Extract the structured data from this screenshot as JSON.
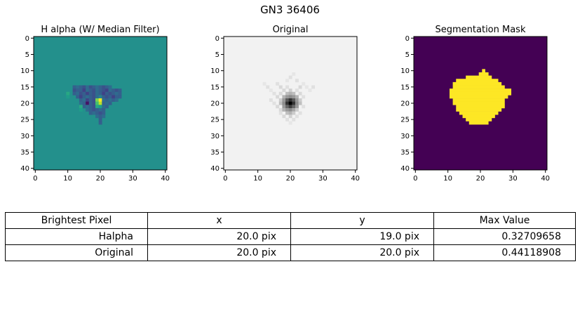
{
  "figure": {
    "suptitle": "GN3 36406"
  },
  "chart_data": [
    {
      "type": "heatmap",
      "title": "H alpha (W/ Median Filter)",
      "colormap": "viridis",
      "xlim": [
        0,
        40
      ],
      "ylim": [
        40,
        0
      ],
      "x_ticks": [
        "0",
        "10",
        "20",
        "30",
        "40"
      ],
      "y_ticks": [
        "0",
        "5",
        "10",
        "15",
        "20",
        "25",
        "30",
        "35",
        "40"
      ],
      "size": 41,
      "background": 0.5,
      "cells": [
        [
          15,
          12,
          0.3
        ],
        [
          15,
          13,
          0.35
        ],
        [
          15,
          14,
          0.3
        ],
        [
          15,
          15,
          0.25
        ],
        [
          15,
          16,
          0.35
        ],
        [
          15,
          17,
          0.25
        ],
        [
          15,
          18,
          0.3
        ],
        [
          15,
          19,
          0.35
        ],
        [
          15,
          20,
          0.3
        ],
        [
          15,
          21,
          0.25
        ],
        [
          15,
          22,
          0.3
        ],
        [
          15,
          23,
          0.35
        ],
        [
          16,
          12,
          0.25
        ],
        [
          16,
          13,
          0.3
        ],
        [
          16,
          14,
          0.3
        ],
        [
          16,
          15,
          0.2
        ],
        [
          16,
          16,
          0.35
        ],
        [
          16,
          17,
          0.3
        ],
        [
          16,
          18,
          0.25
        ],
        [
          16,
          19,
          0.35
        ],
        [
          16,
          20,
          0.3
        ],
        [
          16,
          21,
          0.25
        ],
        [
          16,
          22,
          0.2
        ],
        [
          16,
          23,
          0.35
        ],
        [
          16,
          24,
          0.3
        ],
        [
          16,
          25,
          0.25
        ],
        [
          16,
          26,
          0.3
        ],
        [
          17,
          12,
          0.3
        ],
        [
          17,
          13,
          0.35
        ],
        [
          17,
          14,
          0.25
        ],
        [
          17,
          15,
          0.3
        ],
        [
          17,
          16,
          0.2
        ],
        [
          17,
          17,
          0.3
        ],
        [
          17,
          18,
          0.25
        ],
        [
          17,
          19,
          0.35
        ],
        [
          17,
          20,
          0.3
        ],
        [
          17,
          21,
          0.2
        ],
        [
          17,
          22,
          0.3
        ],
        [
          17,
          23,
          0.25
        ],
        [
          17,
          24,
          0.3
        ],
        [
          17,
          25,
          0.35
        ],
        [
          17,
          26,
          0.3
        ],
        [
          18,
          13,
          0.3
        ],
        [
          18,
          14,
          0.2
        ],
        [
          18,
          15,
          0.3
        ],
        [
          18,
          16,
          0.35
        ],
        [
          18,
          17,
          0.3
        ],
        [
          18,
          18,
          0.25
        ],
        [
          18,
          19,
          0.35
        ],
        [
          18,
          20,
          0.45
        ],
        [
          18,
          21,
          0.3
        ],
        [
          18,
          22,
          0.25
        ],
        [
          18,
          23,
          0.3
        ],
        [
          18,
          24,
          0.2
        ],
        [
          18,
          25,
          0.3
        ],
        [
          18,
          26,
          0.3
        ],
        [
          19,
          14,
          0.3
        ],
        [
          19,
          15,
          0.35
        ],
        [
          19,
          16,
          0.2
        ],
        [
          19,
          17,
          0.3
        ],
        [
          19,
          18,
          0.25
        ],
        [
          19,
          19,
          0.8
        ],
        [
          19,
          20,
          1.0
        ],
        [
          19,
          21,
          0.35
        ],
        [
          19,
          22,
          0.3
        ],
        [
          19,
          23,
          0.35
        ],
        [
          19,
          24,
          0.3
        ],
        [
          19,
          25,
          0.35
        ],
        [
          20,
          14,
          0.35
        ],
        [
          20,
          15,
          0.3
        ],
        [
          20,
          16,
          0.05
        ],
        [
          20,
          17,
          0.3
        ],
        [
          20,
          18,
          0.25
        ],
        [
          20,
          19,
          0.7
        ],
        [
          20,
          20,
          0.9
        ],
        [
          20,
          21,
          0.3
        ],
        [
          20,
          22,
          0.35
        ],
        [
          20,
          23,
          0.3
        ],
        [
          21,
          15,
          0.3
        ],
        [
          21,
          16,
          0.35
        ],
        [
          21,
          17,
          0.3
        ],
        [
          21,
          18,
          0.25
        ],
        [
          21,
          19,
          0.6
        ],
        [
          21,
          20,
          0.55
        ],
        [
          21,
          21,
          0.35
        ],
        [
          21,
          22,
          0.3
        ],
        [
          22,
          16,
          0.35
        ],
        [
          22,
          17,
          0.3
        ],
        [
          22,
          18,
          0.25
        ],
        [
          22,
          19,
          0.3
        ],
        [
          22,
          20,
          0.35
        ],
        [
          22,
          21,
          0.3
        ],
        [
          23,
          17,
          0.3
        ],
        [
          23,
          18,
          0.35
        ],
        [
          23,
          19,
          0.3
        ],
        [
          23,
          20,
          0.25
        ],
        [
          23,
          21,
          0.3
        ],
        [
          24,
          19,
          0.35
        ],
        [
          24,
          20,
          0.3
        ],
        [
          24,
          21,
          0.35
        ],
        [
          25,
          20,
          0.3
        ],
        [
          26,
          20,
          0.3
        ],
        [
          17,
          10,
          0.6
        ],
        [
          18,
          10,
          0.55
        ],
        [
          21,
          14,
          0.6
        ],
        [
          22,
          14,
          0.55
        ]
      ]
    },
    {
      "type": "heatmap",
      "title": "Original",
      "colormap": "gray_r",
      "xlim": [
        0,
        40
      ],
      "ylim": [
        40,
        0
      ],
      "x_ticks": [
        "0",
        "10",
        "20",
        "30",
        "40"
      ],
      "y_ticks": [
        "0",
        "5",
        "10",
        "15",
        "20",
        "25",
        "30",
        "35",
        "40"
      ],
      "size": 41,
      "background": 0.05,
      "cells": [
        [
          11,
          21,
          0.1
        ],
        [
          12,
          20,
          0.12
        ],
        [
          13,
          19,
          0.1
        ],
        [
          13,
          22,
          0.12
        ],
        [
          14,
          12,
          0.1
        ],
        [
          14,
          16,
          0.12
        ],
        [
          14,
          24,
          0.1
        ],
        [
          15,
          13,
          0.12
        ],
        [
          15,
          17,
          0.15
        ],
        [
          15,
          19,
          0.12
        ],
        [
          15,
          23,
          0.15
        ],
        [
          15,
          25,
          0.1
        ],
        [
          15,
          27,
          0.12
        ],
        [
          16,
          14,
          0.1
        ],
        [
          16,
          18,
          0.15
        ],
        [
          16,
          20,
          0.18
        ],
        [
          16,
          22,
          0.12
        ],
        [
          16,
          26,
          0.1
        ],
        [
          17,
          15,
          0.12
        ],
        [
          17,
          17,
          0.15
        ],
        [
          17,
          19,
          0.25
        ],
        [
          17,
          20,
          0.3
        ],
        [
          17,
          21,
          0.25
        ],
        [
          17,
          23,
          0.15
        ],
        [
          18,
          16,
          0.15
        ],
        [
          18,
          18,
          0.3
        ],
        [
          18,
          19,
          0.4
        ],
        [
          18,
          20,
          0.45
        ],
        [
          18,
          21,
          0.4
        ],
        [
          18,
          22,
          0.3
        ],
        [
          18,
          24,
          0.12
        ],
        [
          19,
          14,
          0.12
        ],
        [
          19,
          17,
          0.2
        ],
        [
          19,
          18,
          0.4
        ],
        [
          19,
          19,
          0.65
        ],
        [
          19,
          20,
          0.8
        ],
        [
          19,
          21,
          0.65
        ],
        [
          19,
          22,
          0.4
        ],
        [
          19,
          23,
          0.2
        ],
        [
          20,
          15,
          0.12
        ],
        [
          20,
          17,
          0.25
        ],
        [
          20,
          18,
          0.45
        ],
        [
          20,
          19,
          0.8
        ],
        [
          20,
          20,
          1.0
        ],
        [
          20,
          21,
          0.8
        ],
        [
          20,
          22,
          0.45
        ],
        [
          20,
          23,
          0.25
        ],
        [
          21,
          16,
          0.15
        ],
        [
          21,
          18,
          0.4
        ],
        [
          21,
          19,
          0.6
        ],
        [
          21,
          20,
          0.75
        ],
        [
          21,
          21,
          0.6
        ],
        [
          21,
          22,
          0.4
        ],
        [
          21,
          24,
          0.12
        ],
        [
          22,
          17,
          0.15
        ],
        [
          22,
          18,
          0.3
        ],
        [
          22,
          19,
          0.4
        ],
        [
          22,
          20,
          0.45
        ],
        [
          22,
          21,
          0.35
        ],
        [
          22,
          22,
          0.2
        ],
        [
          23,
          17,
          0.12
        ],
        [
          23,
          19,
          0.25
        ],
        [
          23,
          20,
          0.3
        ],
        [
          23,
          21,
          0.2
        ],
        [
          23,
          23,
          0.12
        ],
        [
          24,
          18,
          0.15
        ],
        [
          24,
          20,
          0.18
        ],
        [
          24,
          22,
          0.12
        ],
        [
          25,
          19,
          0.12
        ],
        [
          25,
          21,
          0.12
        ],
        [
          26,
          20,
          0.1
        ]
      ]
    },
    {
      "type": "heatmap",
      "title": "Segmentation Mask",
      "colormap": "binary-viridis",
      "colors": {
        "off": "#440154",
        "on": "#fde725"
      },
      "xlim": [
        0,
        40
      ],
      "ylim": [
        40,
        0
      ],
      "x_ticks": [
        "0",
        "10",
        "20",
        "30",
        "40"
      ],
      "y_ticks": [
        "0",
        "5",
        "10",
        "15",
        "20",
        "25",
        "30",
        "35",
        "40"
      ],
      "size": 41,
      "mask_rows": [
        [
          10,
          21,
          21
        ],
        [
          11,
          20,
          22
        ],
        [
          12,
          16,
          23
        ],
        [
          13,
          13,
          25
        ],
        [
          14,
          12,
          26
        ],
        [
          15,
          12,
          27
        ],
        [
          16,
          11,
          29
        ],
        [
          17,
          11,
          29
        ],
        [
          18,
          11,
          28
        ],
        [
          19,
          12,
          27
        ],
        [
          20,
          12,
          27
        ],
        [
          21,
          13,
          27
        ],
        [
          22,
          13,
          26
        ],
        [
          23,
          14,
          25
        ],
        [
          24,
          15,
          24
        ],
        [
          25,
          16,
          23
        ],
        [
          26,
          17,
          22
        ]
      ]
    }
  ],
  "table": {
    "headers": [
      "Brightest Pixel",
      "x",
      "y",
      "Max Value"
    ],
    "rows": [
      [
        "Halpha",
        "20.0 pix",
        "19.0 pix",
        "0.32709658"
      ],
      [
        "Original",
        "20.0 pix",
        "20.0 pix",
        "0.44118908"
      ]
    ]
  }
}
